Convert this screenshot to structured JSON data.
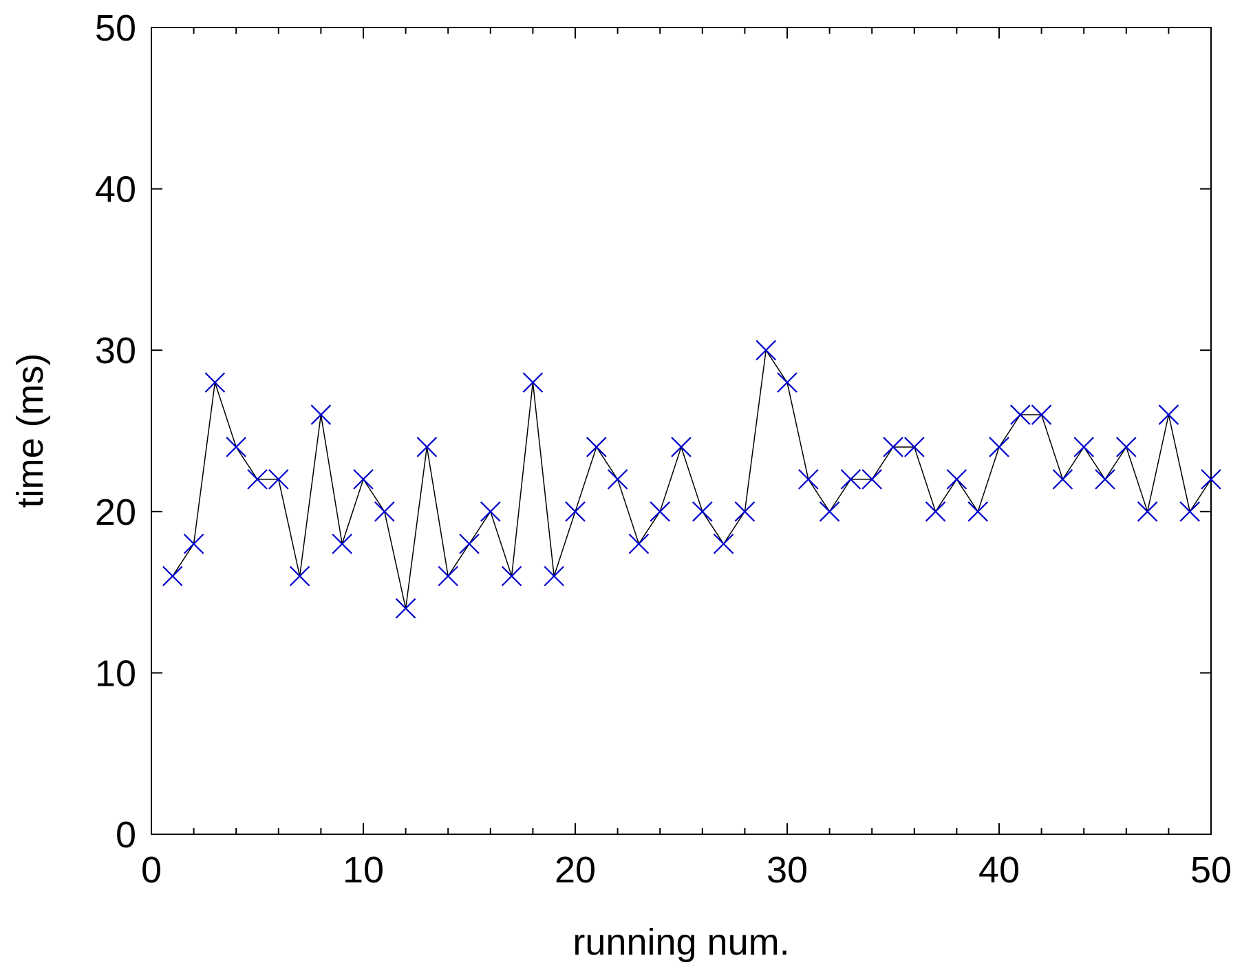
{
  "chart_data": {
    "type": "line",
    "xlabel": "running num.",
    "ylabel": "time (ms)",
    "xlim": [
      0,
      50
    ],
    "ylim": [
      0,
      50
    ],
    "xticks": [
      0,
      10,
      20,
      30,
      40,
      50
    ],
    "yticks": [
      0,
      10,
      20,
      30,
      40,
      50
    ],
    "grid": false,
    "marker": "x",
    "colors": {
      "line": "#000000",
      "marker": "#0000cc"
    },
    "series": [
      {
        "x": [
          1,
          2,
          3,
          4,
          5,
          6,
          7,
          8,
          9,
          10,
          11,
          12,
          13,
          14,
          15,
          16,
          17,
          18,
          19,
          20,
          21,
          22,
          23,
          24,
          25,
          26,
          27,
          28,
          29,
          30,
          31,
          32,
          33,
          34,
          35,
          36,
          37,
          38,
          39,
          40,
          41,
          42,
          43,
          44,
          45,
          46,
          47,
          48,
          49,
          50
        ],
        "values": [
          16,
          18,
          28,
          24,
          22,
          22,
          16,
          26,
          18,
          22,
          20,
          14,
          24,
          16,
          18,
          20,
          16,
          28,
          16,
          20,
          24,
          22,
          18,
          20,
          24,
          20,
          18,
          20,
          30,
          28,
          22,
          20,
          22,
          22,
          24,
          24,
          20,
          22,
          20,
          24,
          26,
          26,
          22,
          24,
          22,
          24,
          20,
          26,
          20,
          22
        ]
      }
    ]
  }
}
